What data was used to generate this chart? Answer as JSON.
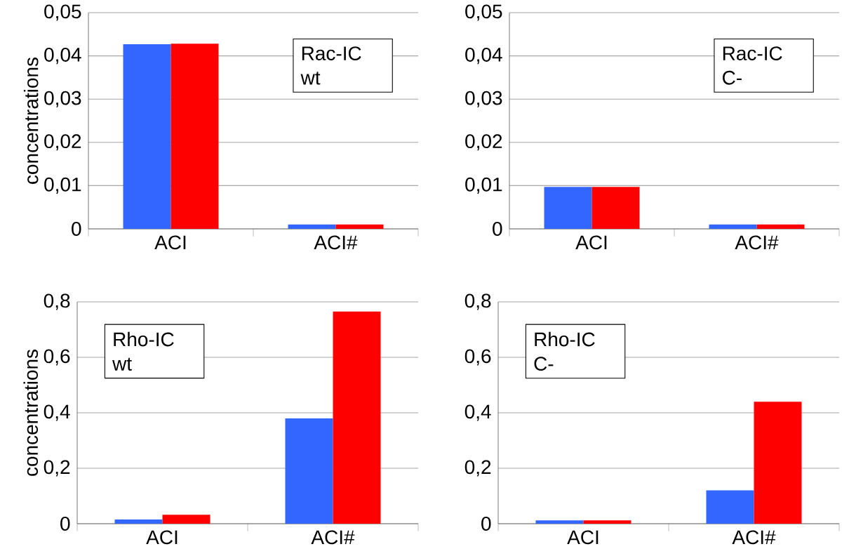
{
  "chart_data": [
    {
      "type": "bar",
      "ylabel": "concentrations",
      "annotations": [
        "Rac-IC",
        "wt"
      ],
      "categories": [
        "ACI",
        "ACI#"
      ],
      "series": [
        {
          "color": "#3366ff",
          "values": [
            0.0427,
            0.001
          ]
        },
        {
          "color": "#ff0000",
          "values": [
            0.0428,
            0.001
          ]
        }
      ],
      "ylim": [
        0,
        0.05
      ],
      "yticks": [
        0,
        {
          "value": 0.01,
          "label": "0,01"
        },
        {
          "value": 0.02,
          "label": "0,02"
        },
        {
          "value": 0.03,
          "label": "0,03"
        },
        {
          "value": 0.04,
          "label": "0,04"
        },
        {
          "value": 0.05,
          "label": "0,05"
        }
      ],
      "grid": "y"
    },
    {
      "type": "bar",
      "annotations": [
        "Rac-IC",
        "C-"
      ],
      "categories": [
        "ACI",
        "ACI#"
      ],
      "series": [
        {
          "color": "#3366ff",
          "values": [
            0.0097,
            0.001
          ]
        },
        {
          "color": "#ff0000",
          "values": [
            0.0097,
            0.001
          ]
        }
      ],
      "ylim": [
        0,
        0.05
      ],
      "yticks": [
        0,
        {
          "value": 0.01,
          "label": "0,01"
        },
        {
          "value": 0.02,
          "label": "0,02"
        },
        {
          "value": 0.03,
          "label": "0,03"
        },
        {
          "value": 0.04,
          "label": "0,04"
        },
        {
          "value": 0.05,
          "label": "0,05"
        }
      ],
      "grid": "y"
    },
    {
      "type": "bar",
      "ylabel": "concentrations",
      "annotations": [
        "Rho-IC",
        "wt"
      ],
      "categories": [
        "ACI",
        "ACI#"
      ],
      "series": [
        {
          "color": "#3366ff",
          "values": [
            0.015,
            0.38
          ]
        },
        {
          "color": "#ff0000",
          "values": [
            0.032,
            0.765
          ]
        }
      ],
      "ylim": [
        0,
        0.8
      ],
      "yticks": [
        0,
        {
          "value": 0.2,
          "label": "0,2"
        },
        {
          "value": 0.4,
          "label": "0,4"
        },
        {
          "value": 0.6,
          "label": "0,6"
        },
        {
          "value": 0.8,
          "label": "0,8"
        }
      ],
      "grid": "y"
    },
    {
      "type": "bar",
      "annotations": [
        "Rho-IC",
        "C-"
      ],
      "categories": [
        "ACI",
        "ACI#"
      ],
      "series": [
        {
          "color": "#3366ff",
          "values": [
            0.012,
            0.12
          ]
        },
        {
          "color": "#ff0000",
          "values": [
            0.012,
            0.44
          ]
        }
      ],
      "ylim": [
        0,
        0.8
      ],
      "yticks": [
        0,
        {
          "value": 0.2,
          "label": "0,2"
        },
        {
          "value": 0.4,
          "label": "0,4"
        },
        {
          "value": 0.6,
          "label": "0,6"
        },
        {
          "value": 0.8,
          "label": "0,8"
        }
      ],
      "grid": "y"
    }
  ]
}
